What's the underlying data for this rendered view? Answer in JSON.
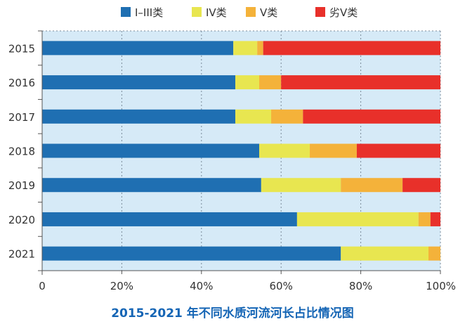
{
  "chart_data": {
    "type": "bar",
    "orientation": "horizontal",
    "stacked": true,
    "title": "2015-2021 年不同水质河流河长占比情况图",
    "categories": [
      "2015",
      "2016",
      "2017",
      "2018",
      "2019",
      "2020",
      "2021"
    ],
    "x_ticks": [
      "0",
      "20%",
      "40%",
      "60%",
      "80%",
      "100%"
    ],
    "xlim": [
      0,
      100
    ],
    "grid": true,
    "legend_position": "top",
    "series": [
      {
        "name": "I–III类",
        "color": "#1f6fb2",
        "values": [
          48.0,
          48.5,
          48.5,
          54.5,
          55.0,
          64.0,
          75.0
        ]
      },
      {
        "name": "IV类",
        "color": "#e8e650",
        "values": [
          6.0,
          6.0,
          9.0,
          12.7,
          20.0,
          30.5,
          22.0
        ]
      },
      {
        "name": "V类",
        "color": "#f4b23a",
        "values": [
          1.5,
          5.5,
          8.0,
          11.8,
          15.5,
          3.0,
          3.0
        ]
      },
      {
        "name": "劣V类",
        "color": "#e8302a",
        "values": [
          44.5,
          40.0,
          34.5,
          21.0,
          9.5,
          2.5,
          0.0
        ]
      }
    ],
    "plot_background": "#d6eaf7"
  }
}
